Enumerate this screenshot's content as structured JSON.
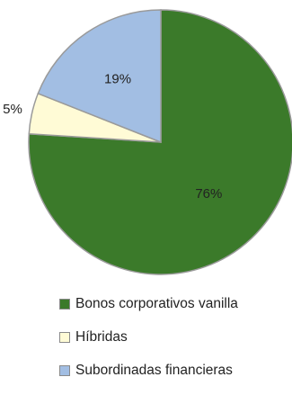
{
  "chart_data": {
    "type": "pie",
    "categories": [
      "Bonos corporativos vanilla",
      "Híbridas",
      "Subordinadas financieras"
    ],
    "values": [
      76,
      5,
      19
    ],
    "data_labels": [
      "76%",
      "5%",
      "19%"
    ],
    "colors": [
      "#3B7A2A",
      "#FFFBD6",
      "#A2BEE3"
    ],
    "title": "",
    "legend_position": "bottom"
  },
  "legend": {
    "items": [
      {
        "label": "Bonos corporativos vanilla",
        "color": "#3B7A2A"
      },
      {
        "label": "Híbridas",
        "color": "#FFFBD6"
      },
      {
        "label": "Subordinadas financieras",
        "color": "#A2BEE3"
      }
    ]
  }
}
